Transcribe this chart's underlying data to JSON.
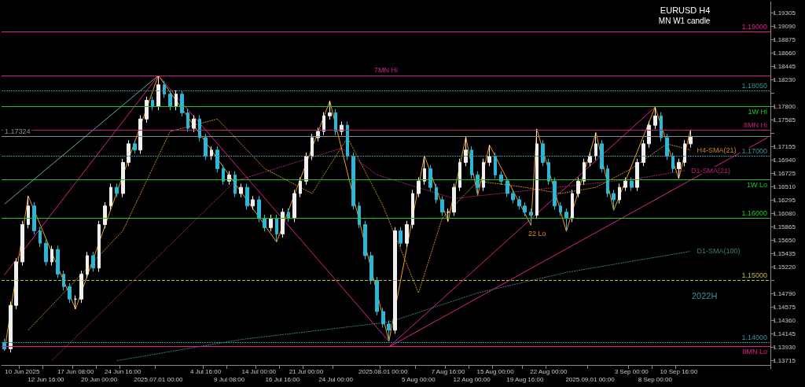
{
  "chart_data": {
    "type": "candlestick",
    "title": "EURUSD H4",
    "subtitle": "MN W1 candle",
    "categories": [
      null,
      null,
      null,
      "10 Jun 2025",
      null,
      null,
      null,
      "12 Jun 16:00",
      null,
      null,
      null,
      null,
      "17 Jun 08:00",
      null,
      null,
      null,
      "20 Jun 00:00",
      null,
      null,
      null,
      "24 Jun 16:00",
      null,
      null,
      null,
      null,
      null,
      "2025.07.01 00:00",
      null,
      null,
      null,
      null,
      null,
      null,
      null,
      "4 Jul 16:00",
      null,
      null,
      null,
      "9 Jul 08:00",
      null,
      null,
      null,
      null,
      "14 Jul 00:00",
      null,
      null,
      null,
      "16 Jul 16:00",
      null,
      null,
      null,
      "21 Jul 00:00",
      null,
      null,
      null,
      null,
      "24 Jul 00:00",
      null,
      null,
      null,
      null,
      null,
      null,
      null,
      "2025.08.01 00:00",
      null,
      null,
      null,
      null,
      null,
      "5 Aug 00:00",
      null,
      null,
      null,
      null,
      "7 Aug 16:00",
      null,
      null,
      null,
      "12 Aug 00:00",
      null,
      null,
      null,
      "15 Aug 00:00",
      null,
      null,
      null,
      null,
      "19 Aug 16:00",
      null,
      null,
      null,
      "22 Aug 00:00",
      null,
      null,
      null,
      null,
      null,
      null,
      "2025.09.01 00:00",
      null,
      null,
      null,
      null,
      null,
      null,
      "3 Sep 00:00",
      null,
      null,
      null,
      "8 Sep 00:00",
      null,
      null,
      null,
      "10 Sep 16:00",
      null,
      null,
      null,
      null,
      null,
      null,
      null,
      null,
      null,
      null,
      null,
      null,
      null,
      null,
      null
    ],
    "ylim": [
      1.1364,
      1.1949
    ],
    "yticks": [
      1.13715,
      {
        "value": 1.1393,
        "label": "1.13930"
      },
      1.14145,
      {
        "value": 1.1436,
        "label": "1.14360"
      },
      1.14575,
      {
        "value": 1.1479,
        "label": "1.14790"
      },
      {
        "value": 1.15005,
        "label": null
      },
      {
        "value": 1.1522,
        "label": "1.15220"
      },
      1.15435,
      {
        "value": 1.1565,
        "label": "1.15650"
      },
      1.15865,
      {
        "value": 1.1608,
        "label": "1.16080"
      },
      1.16295,
      {
        "value": 1.1651,
        "label": "1.16510"
      },
      1.16725,
      {
        "value": 1.1694,
        "label": "1.16940"
      },
      1.17155,
      {
        "value": 1.1737,
        "label": null
      },
      1.17585,
      {
        "value": 1.178,
        "label": "1.17800"
      },
      {
        "value": 1.18015,
        "label": null
      },
      {
        "value": 1.1823,
        "label": "1.18230"
      },
      1.18445,
      {
        "value": 1.1866,
        "label": "1.18660"
      },
      1.18875,
      {
        "value": 1.1909,
        "label": "1.19090"
      },
      1.19305
    ],
    "colors": [
      "#2bb7d5",
      "#f0f0f0",
      "#f0f0f0",
      "#f0f0f0",
      "#f0f0f0",
      "#2bb7d5",
      "#2bb7d5",
      "#2bb7d5",
      "#f0f0f0",
      "#2bb7d5",
      "#2bb7d5",
      "#2bb7d5",
      "#f0f0f0",
      "#f0f0f0",
      "#f0f0f0",
      "#2bb7d5",
      "#f0f0f0",
      "#f0f0f0",
      "#f0f0f0",
      "#2bb7d5",
      "#f0f0f0",
      "#f0f0f0",
      "#2bb7d5",
      "#f0f0f0",
      "#f0f0f0",
      "#2bb7d5",
      "#f0f0f0",
      "#2bb7d5",
      "#2bb7d5",
      "#f0f0f0",
      "#2bb7d5",
      "#2bb7d5",
      "#f0f0f0",
      "#2bb7d5",
      "#2bb7d5",
      "#f0f0f0",
      "#2bb7d5",
      "#2bb7d5",
      "#f0f0f0",
      "#2bb7d5",
      "#f0f0f0",
      "#2bb7d5",
      "#f0f0f0",
      "#2bb7d5",
      "#2bb7d5",
      "#f0f0f0",
      "#2bb7d5",
      "#f0f0f0",
      "#2bb7d5",
      "#f0f0f0",
      "#f0f0f0",
      "#f0f0f0",
      "#f0f0f0",
      "#f0f0f0",
      "#f0f0f0",
      "#f0f0f0",
      "#2bb7d5",
      "#f0f0f0",
      "#2bb7d5",
      "#2bb7d5",
      "#2bb7d5",
      "#2bb7d5",
      "#2bb7d5",
      "#2bb7d5",
      "#2bb7d5",
      "#2bb7d5",
      "#f0f0f0",
      "#2bb7d5",
      "#f0f0f0",
      "#f0f0f0",
      "#f0f0f0",
      "#f0f0f0",
      "#2bb7d5",
      "#2bb7d5",
      "#2bb7d5",
      "#f0f0f0",
      "#f0f0f0",
      "#f0f0f0",
      "#f0f0f0",
      "#2bb7d5",
      "#2bb7d5",
      "#f0f0f0",
      "#f0f0f0",
      "#2bb7d5",
      "#2bb7d5",
      "#2bb7d5",
      "#2bb7d5",
      "#2bb7d5",
      "#2bb7d5",
      "#2bb7d5",
      "#f0f0f0",
      "#2bb7d5",
      "#2bb7d5",
      "#2bb7d5",
      "#2bb7d5",
      "#2bb7d5",
      "#f0f0f0",
      "#f0f0f0",
      "#f0f0f0",
      "#f0f0f0",
      "#f0f0f0",
      "#2bb7d5",
      "#2bb7d5",
      "#2bb7d5",
      "#f0f0f0",
      "#f0f0f0",
      "#2bb7d5",
      "#f0f0f0",
      "#f0f0f0",
      "#f0f0f0",
      "#f0f0f0",
      "#2bb7d5",
      "#2bb7d5",
      "#2bb7d5",
      "#f0f0f0",
      "#f0f0f0",
      "#f0f0f0",
      null,
      null,
      null,
      null,
      null,
      null,
      null,
      null,
      null,
      null,
      null,
      null,
      null
    ],
    "ohlc": [
      [
        1.14,
        1.1406,
        1.1387,
        1.139
      ],
      [
        1.139,
        1.1466,
        1.1384,
        1.146
      ],
      [
        1.146,
        1.1536,
        1.1454,
        1.153
      ],
      [
        1.153,
        1.1596,
        1.1524,
        1.159
      ],
      [
        1.159,
        1.1636,
        1.1584,
        1.162
      ],
      [
        1.162,
        1.1626,
        1.1574,
        1.158
      ],
      [
        1.158,
        1.1586,
        1.1554,
        1.156
      ],
      [
        1.156,
        1.1566,
        1.1524,
        1.153
      ],
      [
        1.153,
        1.1556,
        1.1524,
        1.155
      ],
      [
        1.155,
        1.1556,
        1.1504,
        1.151
      ],
      [
        1.151,
        1.1516,
        1.1484,
        1.149
      ],
      [
        1.149,
        1.1496,
        1.1464,
        1.147
      ],
      [
        1.147,
        1.1476,
        1.1454,
        1.147
      ],
      [
        1.147,
        1.1516,
        1.1464,
        1.151
      ],
      [
        1.151,
        1.1546,
        1.1504,
        1.154
      ],
      [
        1.154,
        1.1546,
        1.1514,
        1.152
      ],
      [
        1.152,
        1.1596,
        1.1514,
        1.159
      ],
      [
        1.159,
        1.1626,
        1.1584,
        1.162
      ],
      [
        1.162,
        1.1656,
        1.1614,
        1.165
      ],
      [
        1.165,
        1.1656,
        1.1634,
        1.164
      ],
      [
        1.164,
        1.1696,
        1.1634,
        1.169
      ],
      [
        1.169,
        1.1726,
        1.1684,
        1.172
      ],
      [
        1.172,
        1.1726,
        1.1704,
        1.171
      ],
      [
        1.171,
        1.1766,
        1.1704,
        1.176
      ],
      [
        1.176,
        1.1796,
        1.1754,
        1.179
      ],
      [
        1.179,
        1.1796,
        1.1774,
        1.178
      ],
      [
        1.178,
        1.183,
        1.1774,
        1.1815
      ],
      [
        1.1815,
        1.1821,
        1.1794,
        1.18
      ],
      [
        1.18,
        1.1806,
        1.1774,
        1.178
      ],
      [
        1.178,
        1.1806,
        1.1774,
        1.18
      ],
      [
        1.18,
        1.1806,
        1.1764,
        1.177
      ],
      [
        1.177,
        1.1776,
        1.1739,
        1.1745
      ],
      [
        1.1745,
        1.1766,
        1.1739,
        1.176
      ],
      [
        1.176,
        1.1766,
        1.1724,
        1.173
      ],
      [
        1.173,
        1.1736,
        1.1694,
        1.17
      ],
      [
        1.17,
        1.1716,
        1.1694,
        1.171
      ],
      [
        1.171,
        1.1716,
        1.1674,
        1.168
      ],
      [
        1.168,
        1.1686,
        1.1654,
        1.166
      ],
      [
        1.166,
        1.1676,
        1.1654,
        1.167
      ],
      [
        1.167,
        1.1676,
        1.1634,
        1.164
      ],
      [
        1.164,
        1.1656,
        1.1634,
        1.165
      ],
      [
        1.165,
        1.1656,
        1.1614,
        1.162
      ],
      [
        1.162,
        1.1636,
        1.1614,
        1.163
      ],
      [
        1.163,
        1.1636,
        1.1594,
        1.16
      ],
      [
        1.16,
        1.1606,
        1.1579,
        1.1585
      ],
      [
        1.1585,
        1.1606,
        1.1579,
        1.16
      ],
      [
        1.16,
        1.1606,
        1.1562,
        1.1575
      ],
      [
        1.1575,
        1.1616,
        1.1569,
        1.161
      ],
      [
        1.161,
        1.1616,
        1.1594,
        1.16
      ],
      [
        1.16,
        1.1646,
        1.1594,
        1.164
      ],
      [
        1.164,
        1.1666,
        1.1634,
        1.166
      ],
      [
        1.166,
        1.1706,
        1.1654,
        1.17
      ],
      [
        1.17,
        1.1736,
        1.1694,
        1.173
      ],
      [
        1.173,
        1.1746,
        1.1724,
        1.174
      ],
      [
        1.174,
        1.1771,
        1.1734,
        1.1765
      ],
      [
        1.1765,
        1.1789,
        1.1759,
        1.177
      ],
      [
        1.177,
        1.1776,
        1.1734,
        1.174
      ],
      [
        1.174,
        1.1756,
        1.1734,
        1.175
      ],
      [
        1.175,
        1.1756,
        1.1694,
        1.17
      ],
      [
        1.17,
        1.1706,
        1.1614,
        1.162
      ],
      [
        1.162,
        1.1626,
        1.1584,
        1.159
      ],
      [
        1.159,
        1.1596,
        1.1534,
        1.154
      ],
      [
        1.154,
        1.1546,
        1.1494,
        1.15
      ],
      [
        1.15,
        1.1506,
        1.1444,
        1.145
      ],
      [
        1.145,
        1.1456,
        1.1424,
        1.143
      ],
      [
        1.143,
        1.1436,
        1.1402,
        1.142
      ],
      [
        1.142,
        1.1586,
        1.1414,
        1.158
      ],
      [
        1.158,
        1.1586,
        1.1554,
        1.156
      ],
      [
        1.156,
        1.1596,
        1.1554,
        1.159
      ],
      [
        1.159,
        1.1646,
        1.1584,
        1.164
      ],
      [
        1.164,
        1.1666,
        1.1634,
        1.166
      ],
      [
        1.166,
        1.1701,
        1.1654,
        1.168
      ],
      [
        1.168,
        1.1686,
        1.1644,
        1.165
      ],
      [
        1.165,
        1.1656,
        1.1624,
        1.163
      ],
      [
        1.163,
        1.1636,
        1.1604,
        1.161
      ],
      [
        1.161,
        1.1616,
        1.1595,
        1.161
      ],
      [
        1.161,
        1.1656,
        1.1604,
        1.165
      ],
      [
        1.165,
        1.1696,
        1.1644,
        1.169
      ],
      [
        1.169,
        1.1731,
        1.1684,
        1.171
      ],
      [
        1.171,
        1.1716,
        1.1664,
        1.167
      ],
      [
        1.167,
        1.1676,
        1.1637,
        1.165
      ],
      [
        1.165,
        1.1696,
        1.1644,
        1.169
      ],
      [
        1.169,
        1.1718,
        1.1684,
        1.17
      ],
      [
        1.17,
        1.1706,
        1.1664,
        1.167
      ],
      [
        1.167,
        1.1676,
        1.1654,
        1.166
      ],
      [
        1.166,
        1.1666,
        1.1634,
        1.164
      ],
      [
        1.164,
        1.1646,
        1.1624,
        1.163
      ],
      [
        1.163,
        1.1636,
        1.1614,
        1.162
      ],
      [
        1.162,
        1.1626,
        1.1604,
        1.161
      ],
      [
        1.161,
        1.1616,
        1.1589,
        1.1605
      ],
      [
        1.1605,
        1.1744,
        1.1599,
        1.172
      ],
      [
        1.172,
        1.1726,
        1.1684,
        1.169
      ],
      [
        1.169,
        1.1696,
        1.1654,
        1.166
      ],
      [
        1.166,
        1.1666,
        1.1614,
        1.162
      ],
      [
        1.162,
        1.1626,
        1.1604,
        1.161
      ],
      [
        1.161,
        1.1616,
        1.1579,
        1.16
      ],
      [
        1.16,
        1.1646,
        1.1594,
        1.164
      ],
      [
        1.164,
        1.1666,
        1.1634,
        1.166
      ],
      [
        1.166,
        1.1696,
        1.1654,
        1.169
      ],
      [
        1.169,
        1.1706,
        1.1684,
        1.17
      ],
      [
        1.17,
        1.1738,
        1.1694,
        1.172
      ],
      [
        1.172,
        1.1726,
        1.1674,
        1.168
      ],
      [
        1.168,
        1.1686,
        1.1634,
        1.164
      ],
      [
        1.164,
        1.1646,
        1.1613,
        1.163
      ],
      [
        1.163,
        1.1656,
        1.1624,
        1.165
      ],
      [
        1.165,
        1.1666,
        1.1644,
        1.166
      ],
      [
        1.166,
        1.1666,
        1.1644,
        1.165
      ],
      [
        1.165,
        1.1696,
        1.1644,
        1.169
      ],
      [
        1.169,
        1.1726,
        1.1684,
        1.172
      ],
      [
        1.172,
        1.1756,
        1.1714,
        1.175
      ],
      [
        1.175,
        1.1779,
        1.1744,
        1.1765
      ],
      [
        1.1765,
        1.1771,
        1.1724,
        1.173
      ],
      [
        1.173,
        1.1736,
        1.1694,
        1.17
      ],
      [
        1.17,
        1.1706,
        1.1674,
        1.168
      ],
      [
        1.168,
        1.1696,
        1.1664,
        1.169
      ],
      [
        1.169,
        1.1726,
        1.1684,
        1.172
      ],
      [
        1.172,
        1.1743,
        1.1714,
        1.1732
      ],
      null,
      null,
      null,
      null,
      null,
      null,
      null,
      null,
      null,
      null,
      null,
      null,
      null
    ],
    "series": [
      {
        "type": "line",
        "color": "#5fa8a8",
        "line_style": "solid",
        "values": [
          1.1623,
          null,
          null,
          null,
          null,
          null,
          null,
          null,
          null,
          null,
          null,
          null,
          null,
          null,
          null,
          null,
          null,
          null,
          null,
          null,
          null,
          null,
          null,
          null,
          null,
          null,
          1.183,
          null,
          null,
          null,
          null,
          null,
          null,
          null,
          null,
          null,
          null,
          null,
          null,
          null,
          null,
          null,
          null,
          null,
          null,
          null,
          null,
          null,
          null,
          null,
          null,
          null,
          null,
          null,
          null,
          null,
          null,
          null,
          null,
          null,
          null,
          null,
          null,
          null,
          null,
          null,
          null,
          null,
          null,
          null,
          null,
          null,
          null,
          null,
          null,
          null,
          null,
          null,
          null,
          null,
          null,
          null,
          null,
          null,
          null,
          null,
          null,
          null,
          null,
          null,
          null,
          null,
          null,
          null,
          null,
          null,
          null,
          null,
          null,
          null,
          null,
          null,
          null,
          null,
          null,
          null,
          null,
          null,
          null,
          null,
          null,
          null,
          null,
          null,
          null,
          null,
          null,
          null,
          null,
          null,
          null,
          null,
          null,
          null,
          null,
          null,
          null,
          null,
          null,
          null
        ]
      },
      {
        "type": "line",
        "color": "#e0208a",
        "line_style": "solid",
        "values": [
          1.1509,
          null,
          null,
          null,
          null,
          null,
          null,
          null,
          null,
          null,
          null,
          null,
          null,
          null,
          null,
          null,
          null,
          null,
          null,
          null,
          null,
          null,
          null,
          null,
          null,
          null,
          1.183,
          null,
          null,
          null,
          null,
          null,
          null,
          null,
          null,
          null,
          null,
          null,
          null,
          null,
          null,
          null,
          null,
          null,
          null,
          null,
          null,
          null,
          null,
          null,
          null,
          null,
          null,
          null,
          null,
          null,
          null,
          null,
          null,
          null,
          null,
          null,
          null,
          null,
          null,
          null,
          null,
          null,
          null,
          null,
          null,
          null,
          null,
          null,
          null,
          null,
          null,
          null,
          null,
          null,
          null,
          null,
          null,
          null,
          null,
          null,
          null,
          null,
          null,
          null,
          null,
          null,
          null,
          null,
          null,
          null,
          null,
          null,
          null,
          null,
          null,
          null,
          null,
          null,
          null,
          null,
          null,
          null,
          null,
          null,
          null,
          null,
          null,
          null,
          null,
          null,
          null,
          null,
          null,
          null,
          null,
          null,
          null,
          null,
          null,
          null,
          null,
          null,
          null,
          null
        ]
      },
      {
        "type": "line",
        "color": "#e0208a",
        "line_style": "solid",
        "values": [
          null,
          null,
          null,
          null,
          null,
          null,
          null,
          null,
          null,
          null,
          null,
          null,
          null,
          null,
          null,
          null,
          null,
          null,
          null,
          null,
          null,
          null,
          null,
          null,
          null,
          null,
          1.183,
          null,
          null,
          null,
          null,
          null,
          null,
          null,
          null,
          null,
          null,
          null,
          null,
          null,
          null,
          null,
          null,
          null,
          null,
          null,
          null,
          null,
          null,
          null,
          null,
          null,
          null,
          null,
          null,
          null,
          null,
          null,
          null,
          null,
          null,
          null,
          null,
          null,
          null,
          1.1402,
          null,
          null,
          null,
          null,
          null,
          null,
          null,
          null,
          null,
          null,
          null,
          null,
          null,
          null,
          null,
          null,
          null,
          null,
          null,
          null,
          null,
          null,
          null,
          null,
          null,
          null,
          null,
          null,
          null,
          null,
          null,
          null,
          null,
          null,
          null,
          null,
          null,
          null,
          null,
          null,
          null,
          null,
          null,
          null,
          null,
          null,
          null,
          null,
          null,
          null,
          null,
          null,
          null,
          null,
          null,
          null,
          null,
          null,
          null,
          null,
          null,
          null,
          null,
          null
        ]
      },
      {
        "type": "line",
        "color": "#e0208a",
        "line_style": "solid",
        "values": [
          null,
          null,
          null,
          null,
          null,
          null,
          null,
          null,
          null,
          null,
          null,
          null,
          null,
          null,
          null,
          null,
          null,
          null,
          null,
          null,
          null,
          null,
          null,
          null,
          null,
          null,
          null,
          null,
          null,
          null,
          null,
          null,
          null,
          null,
          null,
          null,
          null,
          null,
          null,
          null,
          null,
          null,
          null,
          null,
          null,
          null,
          null,
          null,
          null,
          null,
          null,
          null,
          null,
          null,
          null,
          null,
          null,
          null,
          null,
          null,
          null,
          null,
          null,
          null,
          null,
          1.1393,
          null,
          null,
          null,
          null,
          null,
          null,
          null,
          null,
          null,
          null,
          null,
          null,
          null,
          null,
          null,
          null,
          null,
          null,
          null,
          null,
          null,
          null,
          null,
          null,
          null,
          null,
          null,
          null,
          null,
          null,
          null,
          null,
          null,
          null,
          null,
          null,
          null,
          null,
          null,
          null,
          null,
          null,
          null,
          null,
          1.1779,
          null,
          null,
          null,
          null,
          null,
          null,
          null,
          null,
          null,
          null,
          null,
          null,
          null,
          null,
          null,
          null,
          null,
          null,
          null
        ]
      },
      {
        "type": "line",
        "color": "#e0208a",
        "line_style": "solid",
        "values": [
          null,
          null,
          null,
          null,
          null,
          null,
          null,
          null,
          null,
          null,
          null,
          null,
          null,
          null,
          null,
          null,
          null,
          null,
          null,
          null,
          null,
          null,
          null,
          null,
          null,
          null,
          null,
          null,
          null,
          null,
          null,
          null,
          null,
          null,
          null,
          null,
          null,
          null,
          null,
          null,
          null,
          null,
          null,
          null,
          null,
          null,
          null,
          null,
          null,
          null,
          null,
          null,
          null,
          null,
          null,
          null,
          null,
          null,
          null,
          null,
          null,
          null,
          null,
          null,
          null,
          1.1393,
          null,
          null,
          null,
          null,
          null,
          null,
          null,
          null,
          null,
          null,
          null,
          null,
          null,
          null,
          null,
          null,
          null,
          null,
          null,
          null,
          null,
          null,
          null,
          null,
          null,
          null,
          null,
          null,
          null,
          null,
          null,
          null,
          null,
          null,
          null,
          null,
          null,
          null,
          null,
          null,
          null,
          null,
          null,
          null,
          null,
          null,
          null,
          null,
          null,
          null,
          null,
          null,
          null,
          null,
          null,
          null,
          null,
          null,
          null,
          null,
          null,
          null,
          null,
          1.173
        ]
      },
      {
        "type": "line",
        "name": "D1-SMA(100)",
        "color": "#3e7a7a",
        "line_style": "dotted",
        "values": [
          null,
          null,
          null,
          null,
          null,
          null,
          null,
          null,
          null,
          null,
          null,
          null,
          null,
          null,
          null,
          null,
          null,
          null,
          null,
          1.1371,
          null,
          null,
          null,
          null,
          null,
          null,
          null,
          null,
          null,
          null,
          null,
          null,
          null,
          null,
          null,
          null,
          null,
          null,
          null,
          null,
          1.1405,
          null,
          null,
          null,
          null,
          null,
          null,
          null,
          null,
          null,
          null,
          null,
          null,
          null,
          null,
          null,
          null,
          null,
          null,
          null,
          null,
          null,
          null,
          null,
          null,
          1.1433,
          null,
          null,
          null,
          null,
          null,
          null,
          null,
          null,
          null,
          null,
          null,
          null,
          null,
          null,
          1.148,
          null,
          null,
          null,
          null,
          null,
          null,
          null,
          null,
          null,
          null,
          null,
          null,
          null,
          null,
          1.1513,
          null,
          null,
          null,
          null,
          null,
          null,
          null,
          null,
          null,
          null,
          null,
          null,
          null,
          null,
          null,
          null,
          null,
          null,
          null,
          null,
          1.1547,
          null,
          null,
          null,
          null,
          null,
          null,
          null,
          null,
          null,
          null,
          null,
          null,
          null
        ]
      },
      {
        "type": "line",
        "name": "D1-SMA(21)",
        "color": "#b0206e",
        "line_style": "dotted",
        "values": [
          null,
          null,
          null,
          null,
          null,
          null,
          null,
          null,
          1.1371,
          null,
          null,
          null,
          null,
          null,
          null,
          null,
          null,
          null,
          null,
          null,
          null,
          null,
          null,
          null,
          null,
          null,
          null,
          null,
          null,
          null,
          null,
          null,
          null,
          null,
          null,
          null,
          null,
          null,
          null,
          1.166,
          null,
          null,
          null,
          null,
          null,
          null,
          null,
          null,
          null,
          null,
          null,
          null,
          null,
          null,
          null,
          null,
          null,
          1.1713,
          null,
          null,
          null,
          null,
          null,
          1.167,
          null,
          null,
          null,
          null,
          null,
          null,
          null,
          null,
          null,
          null,
          null,
          null,
          1.1632,
          null,
          null,
          null,
          null,
          null,
          null,
          null,
          null,
          null,
          null,
          null,
          null,
          null,
          null,
          null,
          null,
          null,
          null,
          null,
          null,
          null,
          null,
          null,
          null,
          null,
          null,
          null,
          null,
          null,
          null,
          1.1664,
          null,
          null,
          null,
          null,
          null,
          null,
          null,
          1.1677,
          null,
          null,
          null,
          null,
          null,
          null,
          null,
          null,
          null,
          null,
          null,
          null,
          null,
          null
        ]
      },
      {
        "type": "line",
        "name": "H4-SMA(21)",
        "color": "#c8861e",
        "line_style": "dotted",
        "values": [
          null,
          null,
          null,
          null,
          1.142,
          null,
          null,
          null,
          null,
          null,
          null,
          null,
          1.15,
          null,
          null,
          null,
          null,
          null,
          null,
          null,
          1.158,
          null,
          null,
          null,
          null,
          null,
          null,
          null,
          1.174,
          null,
          null,
          null,
          null,
          null,
          null,
          null,
          1.176,
          null,
          null,
          null,
          null,
          null,
          null,
          null,
          1.168,
          null,
          null,
          null,
          null,
          null,
          null,
          null,
          1.164,
          null,
          null,
          null,
          null,
          null,
          1.173,
          null,
          null,
          null,
          null,
          null,
          1.162,
          null,
          null,
          null,
          null,
          null,
          1.148,
          null,
          null,
          null,
          1.16,
          null,
          null,
          null,
          null,
          null,
          1.166,
          null,
          null,
          null,
          null,
          null,
          null,
          null,
          1.165,
          null,
          null,
          null,
          null,
          null,
          1.164,
          null,
          null,
          null,
          null,
          null,
          1.165,
          null,
          null,
          null,
          null,
          null,
          1.168,
          null,
          null,
          null,
          null,
          null,
          1.172,
          null,
          null,
          null,
          1.171,
          null,
          null,
          null,
          null,
          null,
          null,
          null,
          null,
          null,
          null,
          null,
          null,
          null
        ]
      },
      {
        "type": "line",
        "color": "#f39c12",
        "line_style": "solid",
        "values": [
          1.1387,
          null,
          null,
          null,
          1.1636,
          null,
          null,
          null,
          null,
          null,
          null,
          null,
          1.1454,
          null,
          null,
          null,
          null,
          null,
          null,
          null,
          null,
          null,
          null,
          null,
          null,
          null,
          1.183,
          null,
          null,
          null,
          null,
          null,
          null,
          null,
          null,
          null,
          null,
          null,
          null,
          null,
          null,
          null,
          null,
          null,
          null,
          null,
          1.1562,
          null,
          null,
          null,
          null,
          null,
          null,
          null,
          null,
          1.1789,
          null,
          null,
          null,
          null,
          null,
          null,
          null,
          null,
          null,
          1.1402,
          null,
          null,
          null,
          null,
          null,
          1.1701,
          null,
          null,
          null,
          1.1595,
          null,
          null,
          1.1731,
          null,
          1.1637,
          null,
          1.1718,
          null,
          null,
          null,
          null,
          null,
          null,
          1.1589,
          1.1744,
          null,
          null,
          null,
          null,
          1.1579,
          null,
          null,
          null,
          null,
          1.1738,
          null,
          null,
          1.1613,
          null,
          null,
          null,
          null,
          null,
          null,
          1.1779,
          null,
          null,
          null,
          1.1664,
          null,
          1.1743,
          null,
          null,
          null,
          null,
          null,
          null,
          null,
          null,
          null,
          null,
          null,
          null,
          null
        ]
      }
    ],
    "ref_lines": [
      {
        "axis": "y",
        "value": 1.19,
        "label": "1.19000",
        "color": "#e0208a",
        "line_style": "solid"
      },
      {
        "axis": "y",
        "value": 1.183,
        "label": "7MN Hi",
        "color": "#d0208a",
        "line_style": "solid"
      },
      {
        "axis": "y",
        "value": 1.1805,
        "label": "1.18050",
        "color": "#3e8f8f",
        "line_style": "dotted"
      },
      {
        "axis": "y",
        "value": 1.17805,
        "label": "1W Hi",
        "color": "#22c322",
        "line_style": "solid"
      },
      {
        "axis": "y",
        "value": 1.17425,
        "label": "8MN Hi",
        "color": "#c0207a",
        "line_style": "solid"
      },
      {
        "axis": "y",
        "value": 1.17324,
        "label": "1.17324",
        "color": "#8a8a8a",
        "line_style": "solid"
      },
      {
        "axis": "y",
        "value": 1.17,
        "label": "1.17000",
        "color": "#3e8f8f",
        "line_style": "dotted"
      },
      {
        "axis": "y",
        "value": 1.16626,
        "label": "1W Lo",
        "color": "#22c322",
        "line_style": "solid"
      },
      {
        "axis": "y",
        "value": 1.16,
        "label": "1.16000",
        "color": "#22c322",
        "line_style": "solid"
      },
      {
        "axis": "y",
        "value": 1.15,
        "label": "1.15000",
        "color": "#b8b840",
        "line_style": "dashed"
      },
      {
        "axis": "y",
        "value": 1.14,
        "label": "1.14000",
        "color": "#3e8f8f",
        "line_style": "dotted"
      },
      {
        "axis": "y",
        "value": 1.1394,
        "label": "8MN Lo",
        "color": "#e0208a",
        "line_style": "solid"
      }
    ],
    "annotations": [
      "22 Lo",
      "2022H"
    ]
  }
}
